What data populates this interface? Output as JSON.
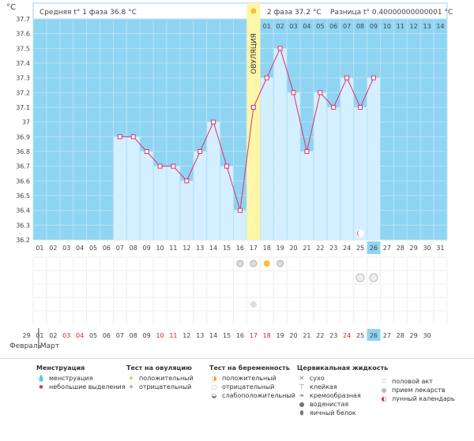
{
  "header": {
    "unit": "°C",
    "phase1_label": "Средняя t° 1 фаза",
    "phase1_value": "36.8 °C",
    "phase2_label": "2 фаза",
    "phase2_value": "37.2 °C",
    "diff_label": "Разница t°",
    "diff_value": "0.40000000000001 °C"
  },
  "ovulation_label": "ОВУЛЯЦИЯ",
  "colors": {
    "plot_bg": "#8fd4f2",
    "bar_fill": "#d4efff",
    "ovulation_band": "#fff6a8",
    "line": "#e0306a",
    "highlight_day": "#8fd4f2",
    "red_date": "#e02020"
  },
  "chart_data": {
    "type": "line",
    "ylim": [
      36.2,
      37.7
    ],
    "yticks": [
      36.2,
      36.3,
      36.4,
      36.5,
      36.6,
      36.7,
      36.8,
      36.9,
      37,
      37.1,
      37.2,
      37.3,
      37.4,
      37.5,
      37.6,
      37.7
    ],
    "ytick_labels": [
      "36.2",
      "36.3",
      "36.4",
      "36.5",
      "36.6",
      "36.7",
      "36.8",
      "36.9",
      "37",
      "37.1",
      "37.2",
      "37.3",
      "37.4",
      "37.5",
      "37.6",
      "37.7"
    ],
    "cycle_days": [
      "01",
      "02",
      "03",
      "04",
      "05",
      "06",
      "07",
      "08",
      "09",
      "10",
      "11",
      "12",
      "13",
      "14",
      "15",
      "16",
      "17",
      "18",
      "19",
      "20",
      "21",
      "22",
      "23",
      "24",
      "25",
      "26",
      "27",
      "28",
      "29",
      "30",
      "31"
    ],
    "after_ovulation_days": [
      "01",
      "02",
      "03",
      "04",
      "05",
      "06",
      "07",
      "08",
      "09",
      "10",
      "11",
      "12",
      "13",
      "14"
    ],
    "ovulation_day_index": 16,
    "highlight_day_index": 25,
    "values": [
      null,
      null,
      null,
      null,
      null,
      null,
      36.9,
      36.9,
      36.8,
      36.7,
      36.7,
      36.6,
      36.8,
      37.0,
      36.7,
      36.4,
      37.1,
      37.3,
      37.5,
      37.2,
      36.8,
      37.2,
      37.1,
      37.3,
      37.1,
      37.3,
      null,
      null,
      null,
      null,
      null
    ]
  },
  "dates": [
    "29",
    "01",
    "02",
    "03",
    "04",
    "05",
    "06",
    "07",
    "08",
    "09",
    "10",
    "11",
    "12",
    "13",
    "14",
    "15",
    "16",
    "17",
    "18",
    "19",
    "20",
    "21",
    "22",
    "23",
    "24",
    "25",
    "26",
    "27",
    "28",
    "29",
    "30"
  ],
  "red_date_indices": [
    3,
    4,
    10,
    11,
    17,
    18,
    24
  ],
  "months": {
    "prev": "Февраль",
    "current": "Март"
  },
  "legend": {
    "menstruation": {
      "title": "Менструация",
      "items": [
        "менструация",
        "небольшие выделения"
      ]
    },
    "ovulation_test": {
      "title": "Тест на овуляцию",
      "items": [
        "положительный",
        "отрицательный"
      ]
    },
    "pregnancy_test": {
      "title": "Тест на беременность",
      "items": [
        "положительный",
        "отрицательный",
        "слабоположительный"
      ]
    },
    "cervical": {
      "title": "Цервикальная жидкость",
      "items": [
        "сухо",
        "клейкая",
        "кремообразная",
        "водянистая",
        "яичный белок"
      ]
    },
    "other": {
      "items": [
        "половой акт",
        "прием лекарств",
        "лунный календарь"
      ]
    }
  }
}
